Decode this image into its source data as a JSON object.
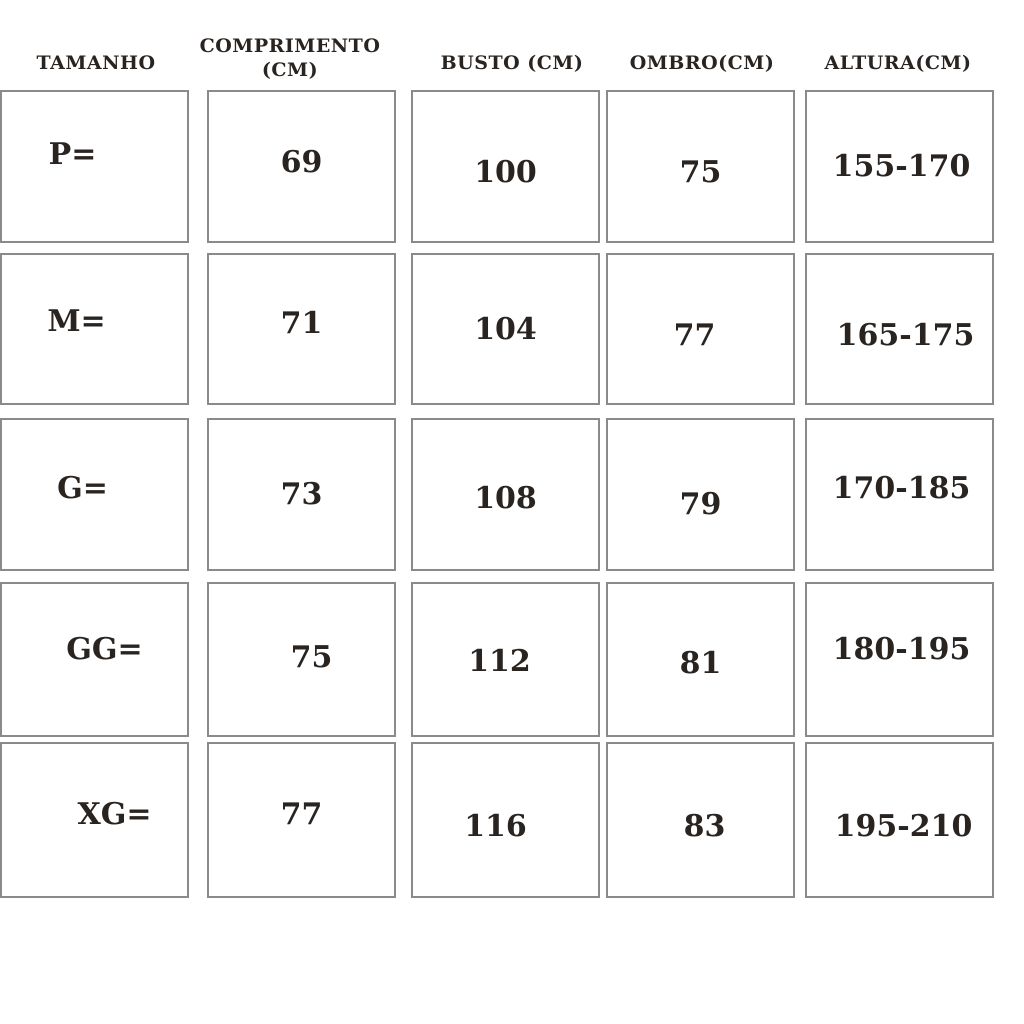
{
  "headers": {
    "size": "TAMANHO",
    "length_line1": "COMPRIMENTO",
    "length_line2": "(CM)",
    "bust": "BUSTO (CM)",
    "shoulder": "OMBRO(CM)",
    "height": "ALTURA(CM)"
  },
  "rows": [
    {
      "size": "P=",
      "length": "69",
      "bust": "100",
      "shoulder": "75",
      "height": "155-170"
    },
    {
      "size": "M=",
      "length": "71",
      "bust": "104",
      "shoulder": "77",
      "height": "165-175"
    },
    {
      "size": "G=",
      "length": "73",
      "bust": "108",
      "shoulder": "79",
      "height": "170-185"
    },
    {
      "size": "GG=",
      "length": "75",
      "bust": "112",
      "shoulder": "81",
      "height": "180-195"
    },
    {
      "size": "XG=",
      "length": "77",
      "bust": "116",
      "shoulder": "83",
      "height": "195-210"
    }
  ]
}
